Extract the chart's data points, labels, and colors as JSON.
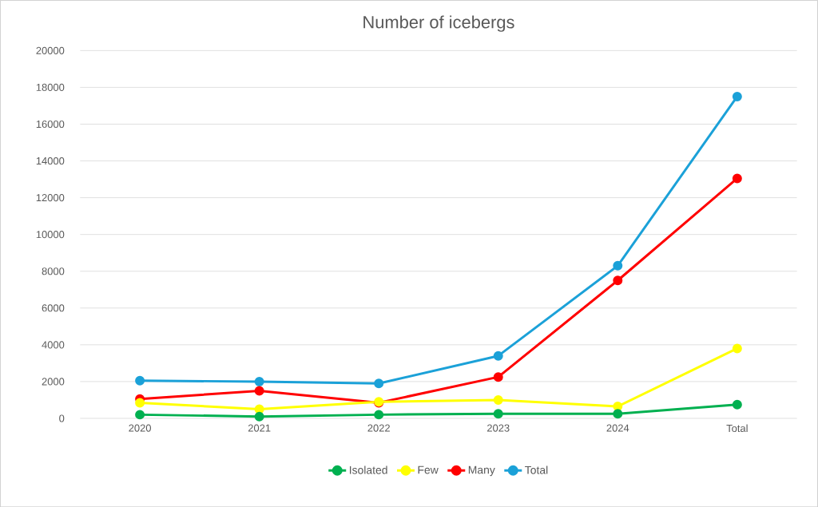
{
  "chart_data": {
    "type": "line",
    "title": "Number of icebergs",
    "categories": [
      "2020",
      "2021",
      "2022",
      "2023",
      "2024",
      "Total"
    ],
    "series": [
      {
        "name": "Isolated",
        "color": "#00b050",
        "values": [
          200,
          100,
          200,
          250,
          250,
          750
        ]
      },
      {
        "name": "Few",
        "color": "#ffff00",
        "values": [
          850,
          500,
          900,
          1000,
          650,
          3800
        ]
      },
      {
        "name": "Many",
        "color": "#ff0000",
        "values": [
          1050,
          1500,
          850,
          2250,
          7500,
          13050
        ]
      },
      {
        "name": "Total",
        "color": "#1ba1d8",
        "values": [
          2050,
          2000,
          1900,
          3400,
          8300,
          17500
        ]
      }
    ],
    "ylim": [
      0,
      20000
    ],
    "yticks": [
      0,
      2000,
      4000,
      6000,
      8000,
      10000,
      12000,
      14000,
      16000,
      18000,
      20000
    ],
    "grid": "y",
    "legend": "bottom",
    "marker": "circle",
    "line_style": "solid"
  }
}
